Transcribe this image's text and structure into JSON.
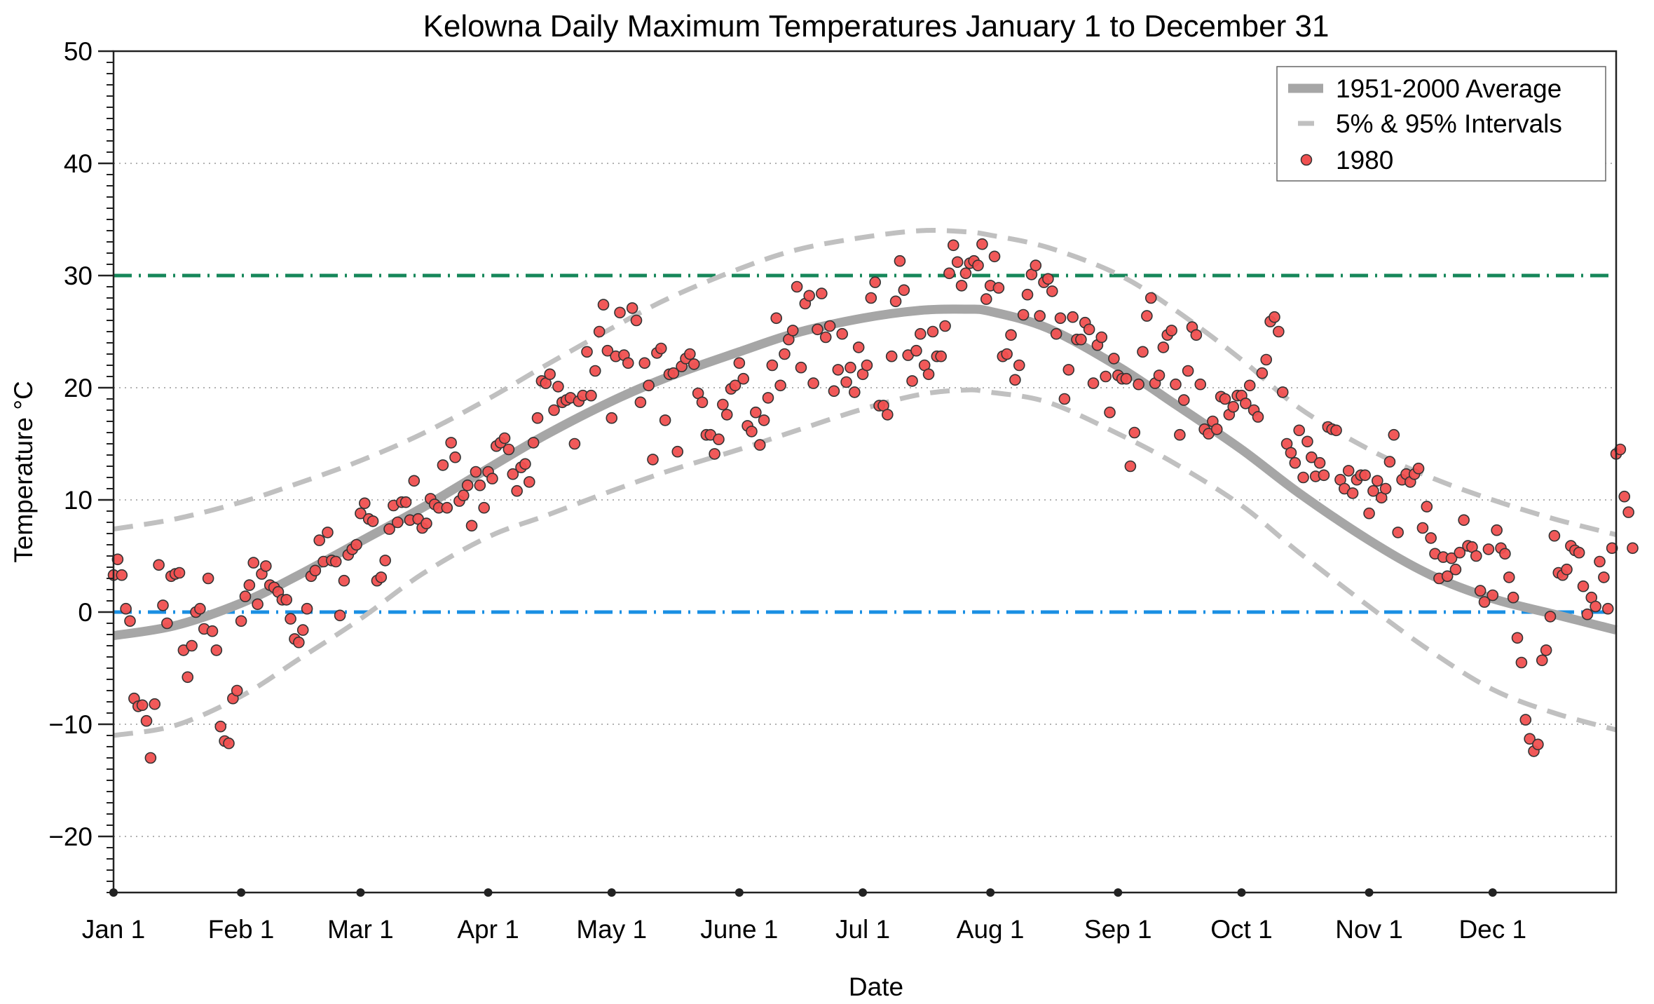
{
  "chart_data": {
    "type": "scatter",
    "title": "Kelowna Daily Maximum Temperatures January 1 to December 31",
    "xlabel": "Date",
    "ylabel": "Temperature °C",
    "ylim": [
      -25,
      50
    ],
    "xlim_days": [
      0,
      365
    ],
    "yticks": [
      -20,
      -10,
      0,
      10,
      20,
      30,
      40,
      50
    ],
    "ytick_labels": [
      "−20",
      "−10",
      "0",
      "10",
      "20",
      "30",
      "40",
      "50"
    ],
    "xticks": [
      {
        "day": 0,
        "label": "Jan 1"
      },
      {
        "day": 31,
        "label": "Feb 1"
      },
      {
        "day": 60,
        "label": "Mar 1"
      },
      {
        "day": 91,
        "label": "Apr 1"
      },
      {
        "day": 121,
        "label": "May 1"
      },
      {
        "day": 152,
        "label": "June 1"
      },
      {
        "day": 182,
        "label": "Jul 1"
      },
      {
        "day": 213,
        "label": "Aug 1"
      },
      {
        "day": 244,
        "label": "Sep 1"
      },
      {
        "day": 274,
        "label": "Oct 1"
      },
      {
        "day": 305,
        "label": "Nov 1"
      },
      {
        "day": 335,
        "label": "Dec 1"
      }
    ],
    "grid": "horizontal-dotted",
    "legend_position": "top-right",
    "reference_lines": [
      {
        "value": 30,
        "color": "#16875a",
        "style": "dash-dot"
      },
      {
        "value": 0,
        "color": "#1a8fe3",
        "style": "dash-dot"
      }
    ],
    "series": [
      {
        "name": "1951-2000 Average",
        "kind": "line",
        "color": "#a6a6a6",
        "x": [
          0,
          15,
          31,
          45,
          60,
          75,
          91,
          105,
          121,
          135,
          152,
          166,
          182,
          196,
          207,
          213,
          227,
          244,
          258,
          274,
          288,
          305,
          320,
          335,
          350,
          365
        ],
        "values": [
          -2.1,
          -1.2,
          0.8,
          3.3,
          6.3,
          9.3,
          12.8,
          15.8,
          18.8,
          21.0,
          23.2,
          24.9,
          26.2,
          26.9,
          27.0,
          26.8,
          25.3,
          21.9,
          18.5,
          14.5,
          10.6,
          6.4,
          3.3,
          1.2,
          -0.2,
          -1.6
        ]
      },
      {
        "name": "5% & 95% Intervals",
        "kind": "line",
        "color": "#c0c0c0",
        "x": [
          0,
          15,
          31,
          45,
          60,
          75,
          91,
          105,
          121,
          135,
          152,
          166,
          182,
          196,
          207,
          213,
          227,
          244,
          258,
          274,
          288,
          305,
          320,
          335,
          350,
          365
        ],
        "upper": [
          7.4,
          8.3,
          9.8,
          11.5,
          13.5,
          15.9,
          19.0,
          22.0,
          25.3,
          28.0,
          30.6,
          32.3,
          33.4,
          34.0,
          33.9,
          33.6,
          32.5,
          30.1,
          26.9,
          22.5,
          18.2,
          14.5,
          12.0,
          10.0,
          8.3,
          6.9
        ],
        "lower": [
          -11.0,
          -10.1,
          -7.5,
          -4.2,
          -0.6,
          3.4,
          6.7,
          8.6,
          10.8,
          12.6,
          14.5,
          16.2,
          18.1,
          19.4,
          19.8,
          19.6,
          18.7,
          15.9,
          13.2,
          9.5,
          5.3,
          0.5,
          -3.5,
          -6.9,
          -9.0,
          -10.5
        ]
      },
      {
        "name": "1980",
        "kind": "scatter",
        "color": "#f05050",
        "values": [
          3.3,
          4.7,
          3.3,
          0.3,
          -0.8,
          -7.7,
          -8.4,
          -8.3,
          -9.7,
          -13.0,
          -8.2,
          4.2,
          0.6,
          -1.0,
          3.2,
          3.4,
          3.5,
          -3.4,
          -5.8,
          -3.0,
          0.0,
          0.3,
          -1.5,
          3.0,
          -1.7,
          -3.4,
          -10.2,
          -11.5,
          -11.7,
          -7.7,
          -7.0,
          -0.8,
          1.4,
          2.4,
          4.4,
          0.7,
          3.4,
          4.1,
          2.4,
          2.2,
          1.8,
          1.1,
          1.1,
          -0.6,
          -2.4,
          -2.7,
          -1.6,
          0.3,
          3.2,
          3.7,
          6.4,
          4.5,
          7.1,
          4.6,
          4.5,
          -0.3,
          2.8,
          5.1,
          5.6,
          6.0,
          8.8,
          9.7,
          8.3,
          8.1,
          2.8,
          3.1,
          4.6,
          7.4,
          9.5,
          8.0,
          9.8,
          9.8,
          8.2,
          11.7,
          8.3,
          7.5,
          7.9,
          10.1,
          9.6,
          9.3,
          13.1,
          9.3,
          15.1,
          13.8,
          9.9,
          10.4,
          11.3,
          7.7,
          12.5,
          11.3,
          9.3,
          12.5,
          11.9,
          14.8,
          15.1,
          15.5,
          14.5,
          12.3,
          10.8,
          12.9,
          13.2,
          11.6,
          15.1,
          17.3,
          20.6,
          20.4,
          21.2,
          18.0,
          20.1,
          18.7,
          18.9,
          19.1,
          15.0,
          18.8,
          19.3,
          23.2,
          19.3,
          21.5,
          25.0,
          27.4,
          23.3,
          17.3,
          22.8,
          26.7,
          22.9,
          22.2,
          27.1,
          26.0,
          18.7,
          22.2,
          20.2,
          13.6,
          23.1,
          23.5,
          17.1,
          21.2,
          21.3,
          14.3,
          21.9,
          22.6,
          23.0,
          22.1,
          19.5,
          18.7,
          15.8,
          15.8,
          14.1,
          15.4,
          18.5,
          17.6,
          19.9,
          20.2,
          22.2,
          20.8,
          16.6,
          16.1,
          17.8,
          14.9,
          17.1,
          19.1,
          22.0,
          26.2,
          20.2,
          23.0,
          24.3,
          25.1,
          29.0,
          21.8,
          27.5,
          28.2,
          20.4,
          25.2,
          28.4,
          24.5,
          25.5,
          19.7,
          21.6,
          24.8,
          20.5,
          21.8,
          19.6,
          23.6,
          21.2,
          22.0,
          28.0,
          29.4,
          18.4,
          18.4,
          17.6,
          22.8,
          27.7,
          31.3,
          28.7,
          22.9,
          20.6,
          23.3,
          24.8,
          22.0,
          21.2,
          25.0,
          22.8,
          22.8,
          25.5,
          30.2,
          32.7,
          31.2,
          29.1,
          30.2,
          31.1,
          31.3,
          30.9,
          32.8,
          27.9,
          29.1,
          31.7,
          28.9,
          22.8,
          23.0,
          24.7,
          20.7,
          22.0,
          26.5,
          28.3,
          30.1,
          30.9,
          26.4,
          29.4,
          29.7,
          28.6,
          24.8,
          26.2,
          19.0,
          21.6,
          26.3,
          24.3,
          24.3,
          25.8,
          25.2,
          20.4,
          23.8,
          24.5,
          21.0,
          17.8,
          22.6,
          21.1,
          20.8,
          20.8,
          13.0,
          16.0,
          20.3,
          23.2,
          26.4,
          28.0,
          20.4,
          21.1,
          23.6,
          24.7,
          25.1,
          20.3,
          15.8,
          18.9,
          21.5,
          25.4,
          24.7,
          20.3,
          16.3,
          15.9,
          17.0,
          16.3,
          19.2,
          19.0,
          17.6,
          18.3,
          19.3,
          19.3,
          18.6,
          20.2,
          18.0,
          17.4,
          21.3,
          22.5,
          25.9,
          26.3,
          25.0,
          19.6,
          15.0,
          14.2,
          13.3,
          16.2,
          12.0,
          15.2,
          13.8,
          12.1,
          13.3,
          12.2,
          16.5,
          16.3,
          16.2,
          11.8,
          11.0,
          12.6,
          10.6,
          11.8,
          12.2,
          12.2,
          8.8,
          10.8,
          11.7,
          10.2,
          11.0,
          13.4,
          15.8,
          7.1,
          11.8,
          12.3,
          11.6,
          12.3,
          12.8,
          7.5,
          9.4,
          6.6,
          5.2,
          3.0,
          4.9,
          3.2,
          4.8,
          3.8,
          5.3,
          8.2,
          5.9,
          5.8,
          5.0,
          1.9,
          0.9,
          5.6,
          1.5,
          7.3,
          5.7,
          5.2,
          3.1,
          1.3,
          -2.3,
          -4.5,
          -9.6,
          -11.3,
          -12.4,
          -11.8,
          -4.3,
          -3.4,
          -0.4,
          6.8,
          3.5,
          3.3,
          3.8,
          5.9,
          5.5,
          5.3,
          2.3,
          -0.2,
          1.3,
          0.5,
          4.5,
          3.1,
          0.3,
          5.7,
          14.1,
          14.5,
          10.3,
          8.9,
          5.7
        ]
      }
    ],
    "legend": [
      {
        "label": "1951-2000 Average",
        "symbol": "thick-line"
      },
      {
        "label": "5% & 95% Intervals",
        "symbol": "dashed-line"
      },
      {
        "label": "1980",
        "symbol": "circle"
      }
    ]
  }
}
